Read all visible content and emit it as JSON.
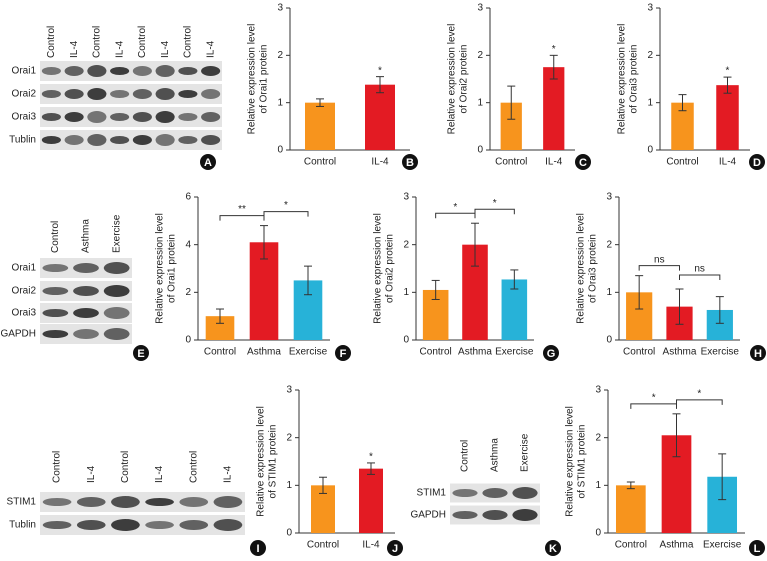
{
  "chart_data": [
    {
      "type": "bar",
      "panel": "B",
      "ylabel": [
        "Relative expression level",
        "of Orai1 protein"
      ],
      "categories": [
        "Control",
        "IL-4"
      ],
      "values": [
        1.0,
        1.38
      ],
      "errors": [
        0.08,
        0.17
      ],
      "colors": [
        "#f7941d",
        "#e31b23"
      ],
      "ylim": [
        0,
        3
      ],
      "yticks": [
        0,
        1,
        2,
        3
      ],
      "significance": [
        "*"
      ]
    },
    {
      "type": "bar",
      "panel": "C",
      "ylabel": [
        "Relative expression level",
        "of Orai2 protein"
      ],
      "categories": [
        "Control",
        "IL-4"
      ],
      "values": [
        1.0,
        1.75
      ],
      "errors": [
        0.35,
        0.25
      ],
      "colors": [
        "#f7941d",
        "#e31b23"
      ],
      "ylim": [
        0,
        3
      ],
      "yticks": [
        0,
        1,
        2,
        3
      ],
      "significance": [
        "*"
      ]
    },
    {
      "type": "bar",
      "panel": "D",
      "ylabel": [
        "Relative expression level",
        "of Orai3 protein"
      ],
      "categories": [
        "Control",
        "IL-4"
      ],
      "values": [
        1.0,
        1.37
      ],
      "errors": [
        0.17,
        0.17
      ],
      "colors": [
        "#f7941d",
        "#e31b23"
      ],
      "ylim": [
        0,
        3
      ],
      "yticks": [
        0,
        1,
        2,
        3
      ],
      "significance": [
        "*"
      ]
    },
    {
      "type": "bar",
      "panel": "F",
      "ylabel": [
        "Relative expression level",
        "of Orai1 protein"
      ],
      "categories": [
        "Control",
        "Asthma",
        "Exercise"
      ],
      "values": [
        1.0,
        4.1,
        2.5
      ],
      "errors": [
        0.3,
        0.7,
        0.6
      ],
      "colors": [
        "#f7941d",
        "#e31b23",
        "#27b2d8"
      ],
      "ylim": [
        0,
        6
      ],
      "yticks": [
        0,
        2,
        4,
        6
      ],
      "significance": [
        "**",
        "*"
      ]
    },
    {
      "type": "bar",
      "panel": "G",
      "ylabel": [
        "Relative expression level",
        "of Orai2 protein"
      ],
      "categories": [
        "Control",
        "Asthma",
        "Exercise"
      ],
      "values": [
        1.05,
        2.0,
        1.27
      ],
      "errors": [
        0.2,
        0.45,
        0.2
      ],
      "colors": [
        "#f7941d",
        "#e31b23",
        "#27b2d8"
      ],
      "ylim": [
        0,
        3
      ],
      "yticks": [
        0,
        1,
        2,
        3
      ],
      "significance": [
        "*",
        "*"
      ]
    },
    {
      "type": "bar",
      "panel": "H",
      "ylabel": [
        "Relative expression level",
        "of Orai3 protein"
      ],
      "categories": [
        "Control",
        "Asthma",
        "Exercise"
      ],
      "values": [
        1.0,
        0.7,
        0.63
      ],
      "errors": [
        0.35,
        0.37,
        0.28
      ],
      "colors": [
        "#f7941d",
        "#e31b23",
        "#27b2d8"
      ],
      "ylim": [
        0,
        3
      ],
      "yticks": [
        0,
        1,
        2,
        3
      ],
      "significance": [
        "ns",
        "ns"
      ]
    },
    {
      "type": "bar",
      "panel": "J",
      "ylabel": [
        "Relative expression level",
        "of STIM1 protein"
      ],
      "categories": [
        "Control",
        "IL-4"
      ],
      "values": [
        1.0,
        1.35
      ],
      "errors": [
        0.17,
        0.12
      ],
      "colors": [
        "#f7941d",
        "#e31b23"
      ],
      "ylim": [
        0,
        3
      ],
      "yticks": [
        0,
        1,
        2,
        3
      ],
      "significance": [
        "*"
      ]
    },
    {
      "type": "bar",
      "panel": "L",
      "ylabel": [
        "Relative expression level",
        "of STIM1 protein"
      ],
      "categories": [
        "Control",
        "Asthma",
        "Exercise"
      ],
      "values": [
        1.0,
        2.05,
        1.18
      ],
      "errors": [
        0.07,
        0.45,
        0.48
      ],
      "colors": [
        "#f7941d",
        "#e31b23",
        "#27b2d8"
      ],
      "ylim": [
        0,
        3
      ],
      "yticks": [
        0,
        1,
        2,
        3
      ],
      "significance": [
        "*",
        "*"
      ]
    }
  ],
  "blots": [
    {
      "panel": "A",
      "lanes": [
        "Control",
        "IL-4",
        "Control",
        "IL-4",
        "Control",
        "IL-4",
        "Control",
        "IL-4"
      ],
      "rows": [
        "Orai1",
        "Orai2",
        "Orai3",
        "Tublin"
      ]
    },
    {
      "panel": "E",
      "lanes": [
        "Control",
        "Asthma",
        "Exercise"
      ],
      "rows": [
        "Orai1",
        "Orai2",
        "Orai3",
        "GAPDH"
      ]
    },
    {
      "panel": "I",
      "lanes": [
        "Control",
        "IL-4",
        "Control",
        "IL-4",
        "Control",
        "IL-4"
      ],
      "rows": [
        "STIM1",
        "Tublin"
      ]
    },
    {
      "panel": "K",
      "lanes": [
        "Control",
        "Asthma",
        "Exercise"
      ],
      "rows": [
        "STIM1",
        "GAPDH"
      ]
    }
  ]
}
